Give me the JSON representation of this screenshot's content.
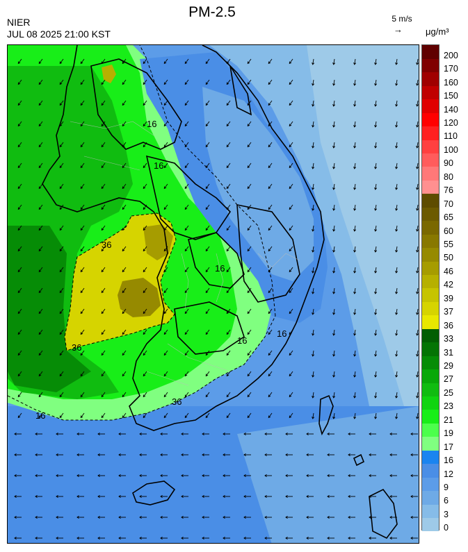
{
  "header": {
    "organization": "NIER",
    "timestamp": "JUL 08 2025 21:00 KST",
    "title": "PM-2.5",
    "wind_scale_label": "5 m/s",
    "unit_label": "μg/m³"
  },
  "colorbar": {
    "levels": [
      "0",
      "3",
      "6",
      "9",
      "12",
      "16",
      "17",
      "19",
      "21",
      "23",
      "25",
      "27",
      "29",
      "31",
      "33",
      "36",
      "37",
      "39",
      "42",
      "46",
      "50",
      "55",
      "60",
      "65",
      "70",
      "76",
      "80",
      "90",
      "100",
      "110",
      "120",
      "140",
      "150",
      "160",
      "170",
      "200"
    ],
    "colors": [
      "#9ecae8",
      "#86bce8",
      "#6eaae6",
      "#5c9ce8",
      "#4a8ee6",
      "#1a84f0",
      "#80ff80",
      "#4cff4c",
      "#18ee18",
      "#10d410",
      "#10bc10",
      "#08a808",
      "#068c06",
      "#047404",
      "#025e02",
      "#e8e800",
      "#d6d400",
      "#c6c400",
      "#b6b000",
      "#a69c00",
      "#968a00",
      "#887800",
      "#7a6800",
      "#6c5a00",
      "#5e4c00",
      "#ff9090",
      "#ff7878",
      "#ff5c5c",
      "#ff4040",
      "#ff2020",
      "#ff0000",
      "#e00000",
      "#c00000",
      "#a00000",
      "#800000",
      "#600000"
    ]
  },
  "map": {
    "contour_labels": [
      "16",
      "36",
      "16",
      "36",
      "16",
      "16",
      "36",
      "16",
      "16"
    ]
  }
}
